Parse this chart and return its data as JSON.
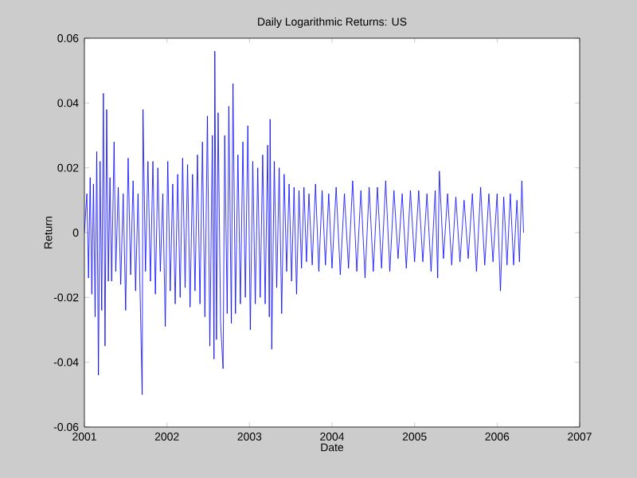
{
  "chart_data": {
    "type": "line",
    "title": "Daily Logarithmic Returns: US",
    "xlabel": "Date",
    "ylabel": "Return",
    "xlim": [
      2001,
      2007
    ],
    "xticks": [
      2001,
      2002,
      2003,
      2004,
      2005,
      2006,
      2007
    ],
    "ylim": [
      -0.06,
      0.06
    ],
    "yticks": [
      -0.06,
      -0.04,
      -0.02,
      0,
      0.02,
      0.04,
      0.06
    ],
    "grid": false,
    "series": [
      {
        "color": "#0000ff",
        "x": [
          2001.0,
          2001.03,
          2001.05,
          2001.07,
          2001.09,
          2001.11,
          2001.13,
          2001.15,
          2001.17,
          2001.19,
          2001.21,
          2001.23,
          2001.25,
          2001.27,
          2001.29,
          2001.31,
          2001.33,
          2001.36,
          2001.38,
          2001.41,
          2001.44,
          2001.47,
          2001.5,
          2001.53,
          2001.56,
          2001.59,
          2001.62,
          2001.65,
          2001.68,
          2001.7,
          2001.71,
          2001.74,
          2001.77,
          2001.8,
          2001.83,
          2001.86,
          2001.89,
          2001.92,
          2001.95,
          2001.98,
          2002.01,
          2002.04,
          2002.07,
          2002.1,
          2002.13,
          2002.16,
          2002.19,
          2002.22,
          2002.25,
          2002.28,
          2002.31,
          2002.34,
          2002.37,
          2002.4,
          2002.43,
          2002.46,
          2002.49,
          2002.52,
          2002.55,
          2002.57,
          2002.58,
          2002.6,
          2002.62,
          2002.65,
          2002.68,
          2002.7,
          2002.73,
          2002.75,
          2002.78,
          2002.8,
          2002.83,
          2002.86,
          2002.89,
          2002.92,
          2002.95,
          2002.98,
          2003.01,
          2003.04,
          2003.07,
          2003.1,
          2003.13,
          2003.16,
          2003.19,
          2003.22,
          2003.24,
          2003.25,
          2003.27,
          2003.3,
          2003.33,
          2003.36,
          2003.39,
          2003.42,
          2003.45,
          2003.48,
          2003.51,
          2003.54,
          2003.57,
          2003.6,
          2003.63,
          2003.66,
          2003.69,
          2003.72,
          2003.76,
          2003.8,
          2003.84,
          2003.88,
          2003.92,
          2003.96,
          2004.0,
          2004.05,
          2004.1,
          2004.15,
          2004.2,
          2004.25,
          2004.3,
          2004.35,
          2004.4,
          2004.45,
          2004.5,
          2004.55,
          2004.6,
          2004.65,
          2004.7,
          2004.75,
          2004.8,
          2004.85,
          2004.9,
          2004.95,
          2005.0,
          2005.05,
          2005.1,
          2005.15,
          2005.2,
          2005.25,
          2005.28,
          2005.3,
          2005.35,
          2005.4,
          2005.45,
          2005.5,
          2005.55,
          2005.6,
          2005.65,
          2005.7,
          2005.75,
          2005.8,
          2005.85,
          2005.9,
          2005.95,
          2006.0,
          2006.04,
          2006.08,
          2006.12,
          2006.16,
          2006.2,
          2006.24,
          2006.27,
          2006.3,
          2006.32
        ],
        "values": [
          0.0,
          0.012,
          -0.014,
          0.017,
          -0.019,
          0.015,
          -0.026,
          0.025,
          -0.044,
          0.022,
          -0.024,
          0.043,
          -0.035,
          0.038,
          -0.015,
          0.017,
          -0.015,
          0.028,
          -0.012,
          0.014,
          -0.016,
          0.012,
          -0.024,
          0.023,
          -0.013,
          0.016,
          -0.018,
          0.012,
          -0.025,
          -0.05,
          0.038,
          -0.012,
          0.022,
          -0.015,
          0.022,
          -0.019,
          0.02,
          -0.012,
          0.012,
          -0.029,
          0.022,
          -0.018,
          0.015,
          -0.022,
          0.018,
          -0.02,
          0.023,
          -0.017,
          0.021,
          -0.023,
          0.018,
          -0.018,
          0.024,
          -0.022,
          0.028,
          -0.026,
          0.036,
          -0.035,
          0.03,
          -0.039,
          0.056,
          -0.033,
          0.037,
          -0.028,
          -0.042,
          0.03,
          -0.025,
          0.039,
          -0.028,
          0.046,
          -0.025,
          0.024,
          -0.022,
          0.028,
          -0.02,
          0.033,
          -0.03,
          0.022,
          -0.022,
          0.02,
          -0.02,
          0.024,
          -0.022,
          0.027,
          -0.026,
          0.035,
          -0.036,
          0.022,
          -0.017,
          0.02,
          -0.025,
          0.018,
          -0.012,
          0.015,
          -0.015,
          0.014,
          -0.019,
          0.013,
          -0.011,
          0.014,
          -0.009,
          0.012,
          -0.01,
          0.015,
          -0.012,
          0.013,
          -0.01,
          0.012,
          -0.011,
          0.014,
          -0.013,
          0.012,
          -0.011,
          0.016,
          -0.012,
          0.013,
          -0.014,
          0.014,
          -0.012,
          0.014,
          -0.011,
          0.016,
          -0.012,
          0.013,
          -0.008,
          0.012,
          -0.011,
          0.013,
          -0.009,
          0.013,
          -0.009,
          0.012,
          -0.012,
          0.013,
          -0.014,
          0.019,
          -0.008,
          0.012,
          -0.01,
          0.011,
          -0.009,
          0.01,
          -0.008,
          0.012,
          -0.012,
          0.014,
          -0.01,
          0.012,
          -0.009,
          0.012,
          -0.018,
          0.011,
          -0.01,
          0.012,
          -0.01,
          0.01,
          -0.009,
          0.016,
          0.0
        ]
      }
    ]
  }
}
